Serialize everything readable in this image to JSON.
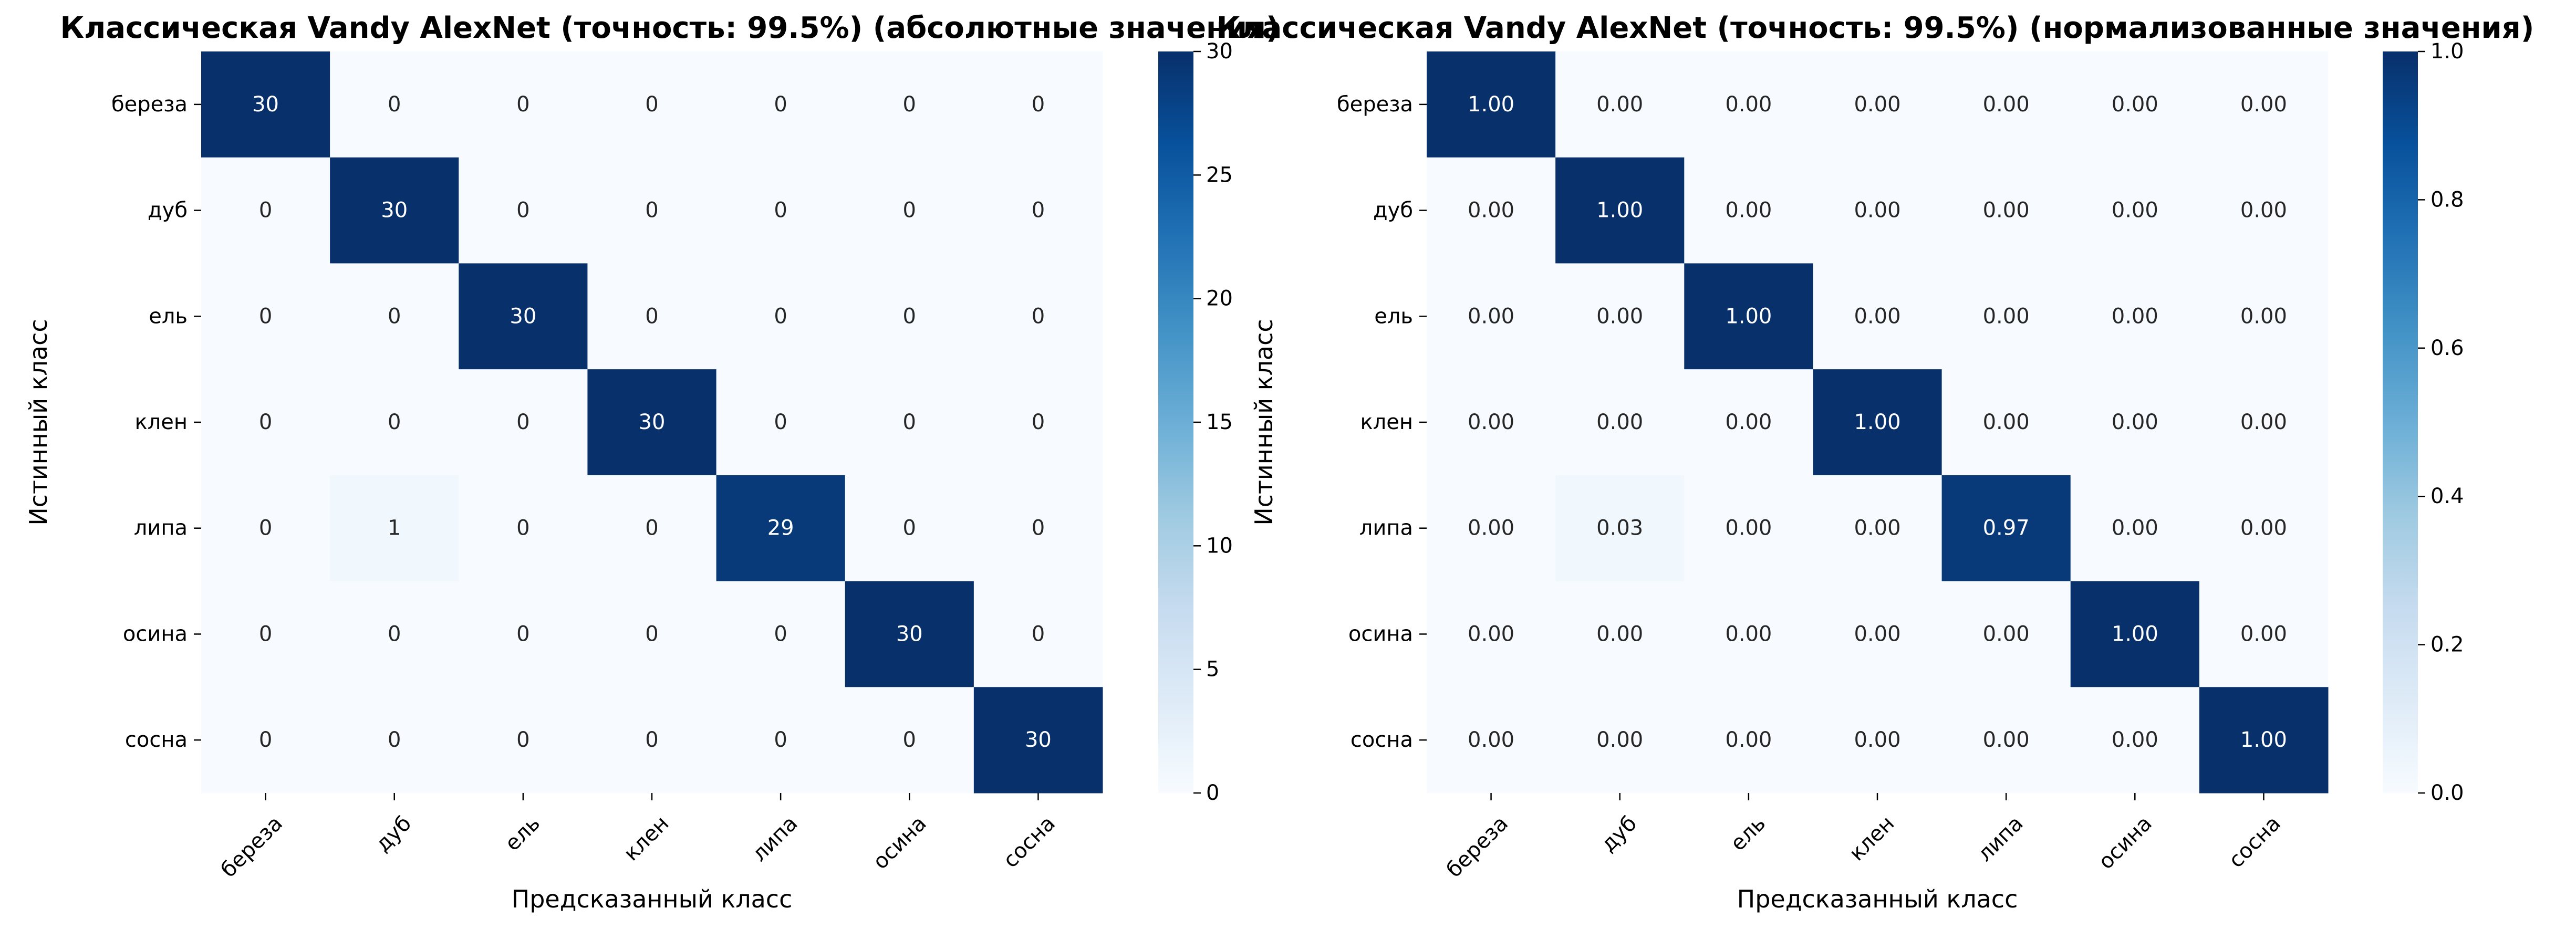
{
  "chart_data": [
    {
      "type": "heatmap",
      "title": "Классическая Vandy AlexNet (точность: 99.5%) (абсолютные значения)",
      "xlabel": "Предсказанный класс",
      "ylabel": "Истинный класс",
      "x_categories": [
        "береза",
        "дуб",
        "ель",
        "клен",
        "липа",
        "осина",
        "сосна"
      ],
      "y_categories": [
        "береза",
        "дуб",
        "ель",
        "клен",
        "липа",
        "осина",
        "сосна"
      ],
      "values": [
        [
          30,
          0,
          0,
          0,
          0,
          0,
          0
        ],
        [
          0,
          30,
          0,
          0,
          0,
          0,
          0
        ],
        [
          0,
          0,
          30,
          0,
          0,
          0,
          0
        ],
        [
          0,
          0,
          0,
          30,
          0,
          0,
          0
        ],
        [
          0,
          1,
          0,
          0,
          29,
          0,
          0
        ],
        [
          0,
          0,
          0,
          0,
          0,
          30,
          0
        ],
        [
          0,
          0,
          0,
          0,
          0,
          0,
          30
        ]
      ],
      "cell_labels": [
        [
          "30",
          "0",
          "0",
          "0",
          "0",
          "0",
          "0"
        ],
        [
          "0",
          "30",
          "0",
          "0",
          "0",
          "0",
          "0"
        ],
        [
          "0",
          "0",
          "30",
          "0",
          "0",
          "0",
          "0"
        ],
        [
          "0",
          "0",
          "0",
          "30",
          "0",
          "0",
          "0"
        ],
        [
          "0",
          "1",
          "0",
          "0",
          "29",
          "0",
          "0"
        ],
        [
          "0",
          "0",
          "0",
          "0",
          "0",
          "30",
          "0"
        ],
        [
          "0",
          "0",
          "0",
          "0",
          "0",
          "0",
          "30"
        ]
      ],
      "colorbar": {
        "range": [
          0,
          30
        ],
        "ticks": [
          0,
          5,
          10,
          15,
          20,
          25,
          30
        ],
        "tick_labels": [
          "0",
          "5",
          "10",
          "15",
          "20",
          "25",
          "30"
        ]
      },
      "colormap": "Blues",
      "grid": false
    },
    {
      "type": "heatmap",
      "title": "Классическая Vandy AlexNet (точность: 99.5%) (нормализованные значения)",
      "xlabel": "Предсказанный класс",
      "ylabel": "Истинный класс",
      "x_categories": [
        "береза",
        "дуб",
        "ель",
        "клен",
        "липа",
        "осина",
        "сосна"
      ],
      "y_categories": [
        "береза",
        "дуб",
        "ель",
        "клен",
        "липа",
        "осина",
        "сосна"
      ],
      "values": [
        [
          1.0,
          0.0,
          0.0,
          0.0,
          0.0,
          0.0,
          0.0
        ],
        [
          0.0,
          1.0,
          0.0,
          0.0,
          0.0,
          0.0,
          0.0
        ],
        [
          0.0,
          0.0,
          1.0,
          0.0,
          0.0,
          0.0,
          0.0
        ],
        [
          0.0,
          0.0,
          0.0,
          1.0,
          0.0,
          0.0,
          0.0
        ],
        [
          0.0,
          0.0333,
          0.0,
          0.0,
          0.9667,
          0.0,
          0.0
        ],
        [
          0.0,
          0.0,
          0.0,
          0.0,
          0.0,
          1.0,
          0.0
        ],
        [
          0.0,
          0.0,
          0.0,
          0.0,
          0.0,
          0.0,
          1.0
        ]
      ],
      "cell_labels": [
        [
          "1.00",
          "0.00",
          "0.00",
          "0.00",
          "0.00",
          "0.00",
          "0.00"
        ],
        [
          "0.00",
          "1.00",
          "0.00",
          "0.00",
          "0.00",
          "0.00",
          "0.00"
        ],
        [
          "0.00",
          "0.00",
          "1.00",
          "0.00",
          "0.00",
          "0.00",
          "0.00"
        ],
        [
          "0.00",
          "0.00",
          "0.00",
          "1.00",
          "0.00",
          "0.00",
          "0.00"
        ],
        [
          "0.00",
          "0.03",
          "0.00",
          "0.00",
          "0.97",
          "0.00",
          "0.00"
        ],
        [
          "0.00",
          "0.00",
          "0.00",
          "0.00",
          "0.00",
          "1.00",
          "0.00"
        ],
        [
          "0.00",
          "0.00",
          "0.00",
          "0.00",
          "0.00",
          "0.00",
          "1.00"
        ]
      ],
      "colorbar": {
        "range": [
          0,
          1
        ],
        "ticks": [
          0,
          0.2,
          0.4,
          0.6,
          0.8,
          1.0
        ],
        "tick_labels": [
          "0.0",
          "0.2",
          "0.4",
          "0.6",
          "0.8",
          "1.0"
        ]
      },
      "colormap": "Blues",
      "grid": false
    }
  ]
}
